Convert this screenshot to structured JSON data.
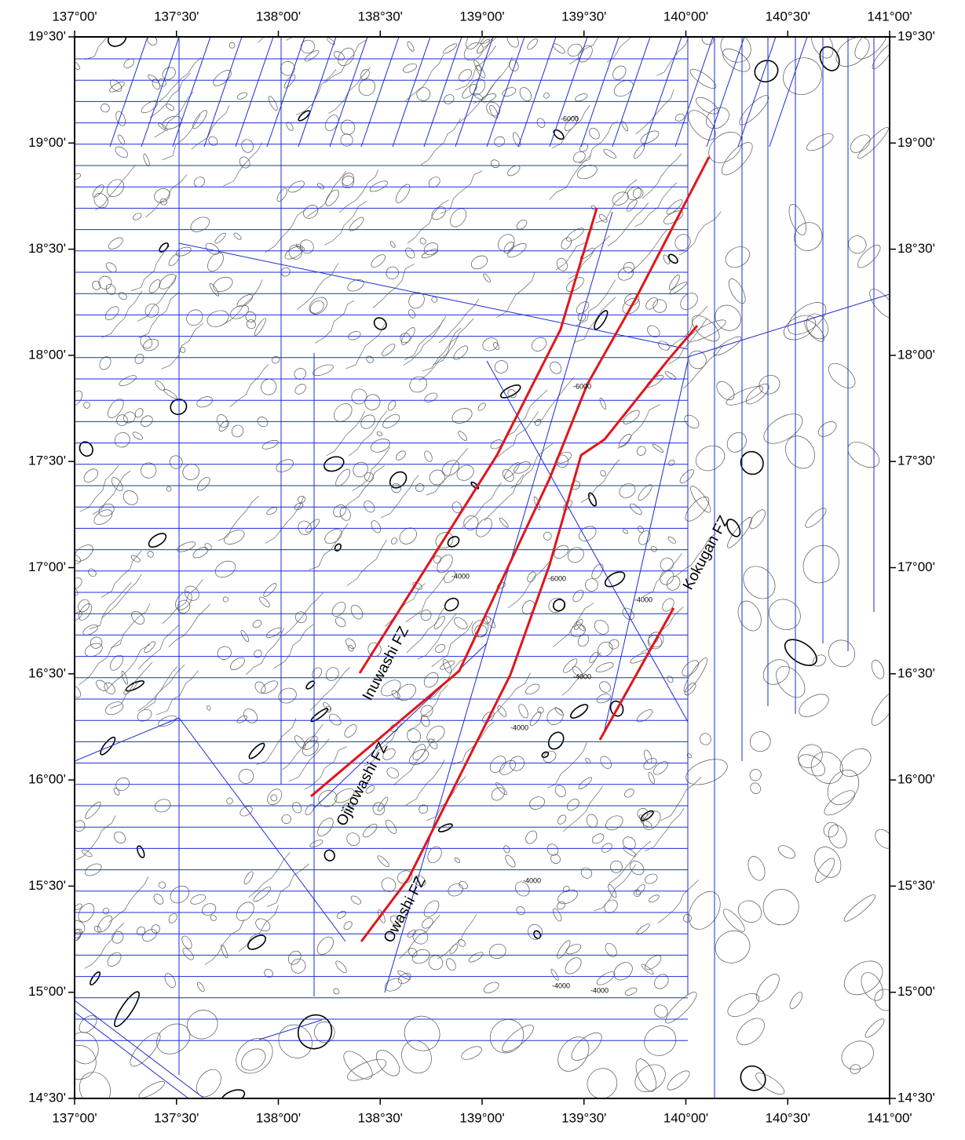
{
  "map": {
    "xlim": [
      137,
      141
    ],
    "ylim": [
      14.5,
      19.5
    ],
    "xticks": [
      {
        "value": 137,
        "label": "137°00'"
      },
      {
        "value": 137.5,
        "label": "137°30'"
      },
      {
        "value": 138,
        "label": "138°00'"
      },
      {
        "value": 138.5,
        "label": "138°30'"
      },
      {
        "value": 139,
        "label": "139°00'"
      },
      {
        "value": 139.5,
        "label": "139°30'"
      },
      {
        "value": 140,
        "label": "140°00'"
      },
      {
        "value": 140.5,
        "label": "140°30'"
      },
      {
        "value": 141,
        "label": "141°00'"
      }
    ],
    "yticks": [
      {
        "value": 19.5,
        "label": "19°30'"
      },
      {
        "value": 19,
        "label": "19°00'"
      },
      {
        "value": 18.5,
        "label": "18°30'"
      },
      {
        "value": 18,
        "label": "18°00'"
      },
      {
        "value": 17.5,
        "label": "17°30'"
      },
      {
        "value": 17,
        "label": "17°00'"
      },
      {
        "value": 16.5,
        "label": "16°30'"
      },
      {
        "value": 16,
        "label": "16°00'"
      },
      {
        "value": 15.5,
        "label": "15°30'"
      },
      {
        "value": 15,
        "label": "15°00'"
      },
      {
        "value": 14.5,
        "label": "14°30'"
      }
    ],
    "fault_zones": [
      {
        "name": "Inuwashi FZ",
        "color": "#e0161b",
        "lon": [
          138.399,
          139.073,
          139.385,
          139.563
        ],
        "lat": [
          16.503,
          17.53,
          18.122,
          18.694
        ]
      },
      {
        "name": "Ojirowashi FZ",
        "color": "#e0161b",
        "lon": [
          138.16,
          138.888,
          139.331,
          139.516,
          139.755,
          140.114
        ],
        "lat": [
          15.923,
          16.514,
          17.419,
          17.863,
          18.269,
          18.935
        ]
      },
      {
        "name": "Owashi FZ",
        "color": "#e0161b",
        "lon": [
          138.407,
          138.638,
          139.139,
          139.331,
          139.486,
          139.601,
          139.909,
          140.056
        ],
        "lat": [
          15.239,
          15.535,
          16.496,
          17.013,
          17.53,
          17.604,
          17.974,
          18.14
        ]
      },
      {
        "name": "Kokugan FZ",
        "color": "#e0161b",
        "lon": [
          139.578,
          139.94
        ],
        "lat": [
          16.189,
          16.81
        ]
      }
    ],
    "contour_labels": [
      "-6000",
      "-6000",
      "-6000",
      "-4000",
      "-4000",
      "-4000",
      "-4000",
      "-4000",
      "-4000",
      "-4000"
    ]
  }
}
